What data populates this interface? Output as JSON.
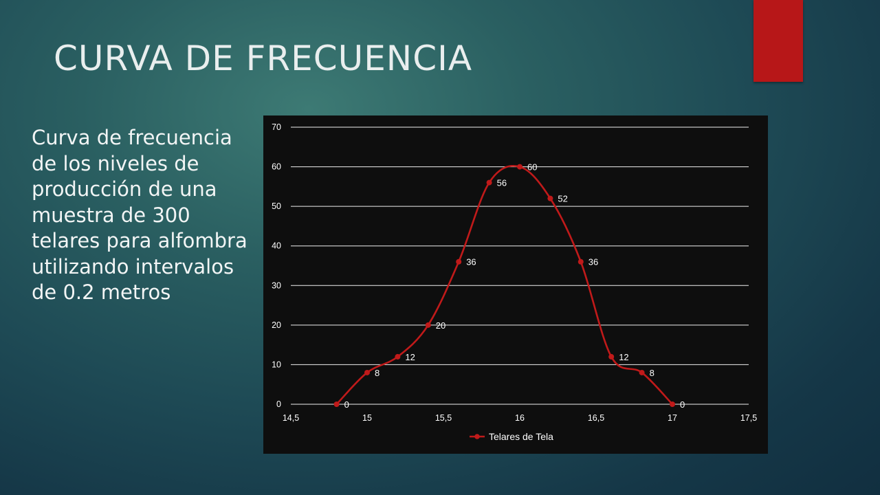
{
  "slide": {
    "title": "CURVA DE FRECUENCIA",
    "body": "Curva de frecuencia de los niveles de producción de una muestra de 300 telares para alfombra utilizando intervalos de 0.2 metros",
    "accent_color": "#b71718"
  },
  "chart_data": {
    "type": "line",
    "smooth": true,
    "markers": true,
    "data_labels": true,
    "x": [
      14.8,
      15.0,
      15.2,
      15.4,
      15.6,
      15.8,
      16.0,
      16.2,
      16.4,
      16.6,
      16.8,
      17.0
    ],
    "series": [
      {
        "name": "Telares de Tela",
        "color": "#c01a1a",
        "values": [
          0,
          8,
          12,
          20,
          36,
          56,
          60,
          52,
          36,
          12,
          8,
          0
        ]
      }
    ],
    "xlim": [
      14.5,
      17.5
    ],
    "ylim": [
      0,
      70
    ],
    "x_ticks": [
      "14,5",
      "15",
      "15,5",
      "16",
      "16,5",
      "17",
      "17,5"
    ],
    "y_ticks": [
      "0",
      "10",
      "20",
      "30",
      "40",
      "50",
      "60",
      "70"
    ],
    "grid": "horizontal",
    "legend": "bottom",
    "background": "#0e0e0e"
  }
}
